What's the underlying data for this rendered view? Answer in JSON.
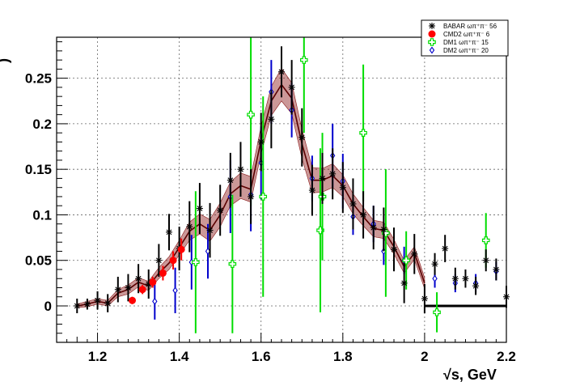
{
  "chart_data": {
    "type": "scatter",
    "xlabel_prefix": "√s, GeV",
    "ylabel_fragment": ")",
    "xlim": [
      1.1,
      2.2
    ],
    "ylim": [
      -0.04,
      0.295
    ],
    "x_ticks": [
      "1.2",
      "1.4",
      "1.6",
      "1.8",
      "2",
      "2.2"
    ],
    "x_tick_values": [
      1.2,
      1.4,
      1.6,
      1.8,
      2.0,
      2.2
    ],
    "y_ticks": [
      "0",
      "0.05",
      "0.1",
      "0.15",
      "0.2",
      "0.25"
    ],
    "y_tick_values": [
      0,
      0.05,
      0.1,
      0.15,
      0.2,
      0.25
    ],
    "grid": true,
    "legend_position": "top-right",
    "series": [
      {
        "name": "BABAR ωπ⁺π⁻ 56",
        "marker": "star",
        "color": "#000000",
        "error_color": "#000000",
        "points": [
          [
            1.15,
            0.0,
            0.008
          ],
          [
            1.175,
            0.002,
            0.006
          ],
          [
            1.2,
            0.006,
            0.01
          ],
          [
            1.225,
            0.003,
            0.01
          ],
          [
            1.25,
            0.018,
            0.014
          ],
          [
            1.275,
            0.02,
            0.015
          ],
          [
            1.3,
            0.03,
            0.016
          ],
          [
            1.325,
            0.024,
            0.016
          ],
          [
            1.35,
            0.05,
            0.018
          ],
          [
            1.375,
            0.081,
            0.02
          ],
          [
            1.4,
            0.063,
            0.024
          ],
          [
            1.425,
            0.087,
            0.028
          ],
          [
            1.45,
            0.107,
            0.028
          ],
          [
            1.475,
            0.083,
            0.03
          ],
          [
            1.5,
            0.105,
            0.028
          ],
          [
            1.525,
            0.138,
            0.03
          ],
          [
            1.55,
            0.15,
            0.03
          ],
          [
            1.575,
            0.12,
            0.03
          ],
          [
            1.6,
            0.18,
            0.032
          ],
          [
            1.625,
            0.205,
            0.032
          ],
          [
            1.65,
            0.257,
            0.028
          ],
          [
            1.675,
            0.24,
            0.03
          ],
          [
            1.7,
            0.185,
            0.032
          ],
          [
            1.725,
            0.127,
            0.028
          ],
          [
            1.75,
            0.14,
            0.028
          ],
          [
            1.775,
            0.145,
            0.028
          ],
          [
            1.8,
            0.13,
            0.028
          ],
          [
            1.825,
            0.112,
            0.028
          ],
          [
            1.85,
            0.1,
            0.026
          ],
          [
            1.875,
            0.086,
            0.024
          ],
          [
            1.9,
            0.084,
            0.024
          ],
          [
            1.925,
            0.062,
            0.024
          ],
          [
            1.95,
            0.025,
            0.022
          ],
          [
            1.975,
            0.057,
            0.022
          ],
          [
            2.0,
            0.008,
            0.016
          ],
          [
            2.025,
            0.046,
            0.012
          ],
          [
            2.05,
            0.063,
            0.015
          ],
          [
            2.075,
            0.03,
            0.012
          ],
          [
            2.1,
            0.03,
            0.01
          ],
          [
            2.125,
            0.022,
            0.01
          ],
          [
            2.15,
            0.05,
            0.012
          ],
          [
            2.175,
            0.04,
            0.012
          ],
          [
            2.2,
            0.01,
            0.012
          ]
        ]
      },
      {
        "name": "CMD2 ωπ⁺π⁻ 6",
        "marker": "circle",
        "color": "#ff0000",
        "error_color": "#ff0000",
        "points": [
          [
            1.285,
            0.006,
            0.004
          ],
          [
            1.31,
            0.018,
            0.005
          ],
          [
            1.335,
            0.026,
            0.006
          ],
          [
            1.36,
            0.036,
            0.008
          ],
          [
            1.385,
            0.05,
            0.01
          ],
          [
            1.405,
            0.062,
            0.012
          ]
        ]
      },
      {
        "name": "DM1 ωπ⁺π⁻ 15",
        "marker": "open-cross",
        "color": "#00dd00",
        "error_color": "#00dd00",
        "points": [
          [
            1.44,
            0.048,
            0.078
          ],
          [
            1.53,
            0.046,
            0.076
          ],
          [
            1.575,
            0.21,
            0.1
          ],
          [
            1.605,
            0.12,
            0.11
          ],
          [
            1.705,
            0.27,
            0.08
          ],
          [
            1.745,
            0.083,
            0.09
          ],
          [
            1.75,
            0.12,
            0.07
          ],
          [
            1.85,
            0.19,
            0.075
          ],
          [
            1.905,
            0.08,
            0.07
          ],
          [
            1.955,
            0.05,
            0.032
          ],
          [
            2.03,
            -0.007,
            0.022
          ],
          [
            2.15,
            0.072,
            0.03
          ]
        ]
      },
      {
        "name": "DM2 ωπ⁺π⁻ 20",
        "marker": "open-diamond",
        "color": "#0000cc",
        "error_color": "#0000cc",
        "points": [
          [
            1.34,
            0.005,
            0.02
          ],
          [
            1.39,
            0.017,
            0.025
          ],
          [
            1.43,
            0.048,
            0.03
          ],
          [
            1.47,
            0.06,
            0.03
          ],
          [
            1.525,
            0.12,
            0.04
          ],
          [
            1.575,
            0.122,
            0.04
          ],
          [
            1.6,
            0.157,
            0.04
          ],
          [
            1.625,
            0.235,
            0.035
          ],
          [
            1.675,
            0.215,
            0.03
          ],
          [
            1.725,
            0.14,
            0.025
          ],
          [
            1.775,
            0.165,
            0.035
          ],
          [
            1.8,
            0.137,
            0.03
          ],
          [
            1.825,
            0.098,
            0.02
          ],
          [
            1.875,
            0.09,
            0.02
          ],
          [
            1.9,
            0.06,
            0.015
          ],
          [
            1.95,
            0.05,
            0.015
          ],
          [
            2.025,
            0.03,
            0.01
          ],
          [
            2.075,
            0.025,
            0.01
          ],
          [
            2.125,
            0.025,
            0.01
          ],
          [
            2.175,
            0.038,
            0.01
          ]
        ]
      }
    ],
    "fit_band": {
      "color": "#8b1a1a",
      "x": [
        1.15,
        1.175,
        1.2,
        1.225,
        1.25,
        1.275,
        1.3,
        1.325,
        1.35,
        1.375,
        1.4,
        1.425,
        1.45,
        1.475,
        1.5,
        1.525,
        1.55,
        1.575,
        1.6,
        1.625,
        1.65,
        1.675,
        1.7,
        1.725,
        1.75,
        1.775,
        1.8,
        1.825,
        1.85,
        1.875,
        1.9,
        1.925,
        1.95,
        1.975,
        2.0
      ],
      "y": [
        0.0,
        0.002,
        0.005,
        0.003,
        0.014,
        0.018,
        0.026,
        0.022,
        0.036,
        0.047,
        0.064,
        0.082,
        0.09,
        0.083,
        0.1,
        0.123,
        0.132,
        0.128,
        0.182,
        0.225,
        0.243,
        0.228,
        0.178,
        0.138,
        0.138,
        0.143,
        0.132,
        0.112,
        0.098,
        0.085,
        0.083,
        0.065,
        0.043,
        0.058,
        0.025
      ],
      "half_width": [
        0.002,
        0.003,
        0.003,
        0.003,
        0.004,
        0.005,
        0.005,
        0.005,
        0.006,
        0.007,
        0.008,
        0.01,
        0.011,
        0.012,
        0.013,
        0.013,
        0.014,
        0.014,
        0.015,
        0.016,
        0.018,
        0.017,
        0.016,
        0.014,
        0.013,
        0.013,
        0.012,
        0.011,
        0.01,
        0.009,
        0.009,
        0.008,
        0.007,
        0.007,
        0.006
      ]
    },
    "baseline": {
      "x_start": 2.0,
      "x_end": 2.2,
      "y": 0.0
    }
  }
}
